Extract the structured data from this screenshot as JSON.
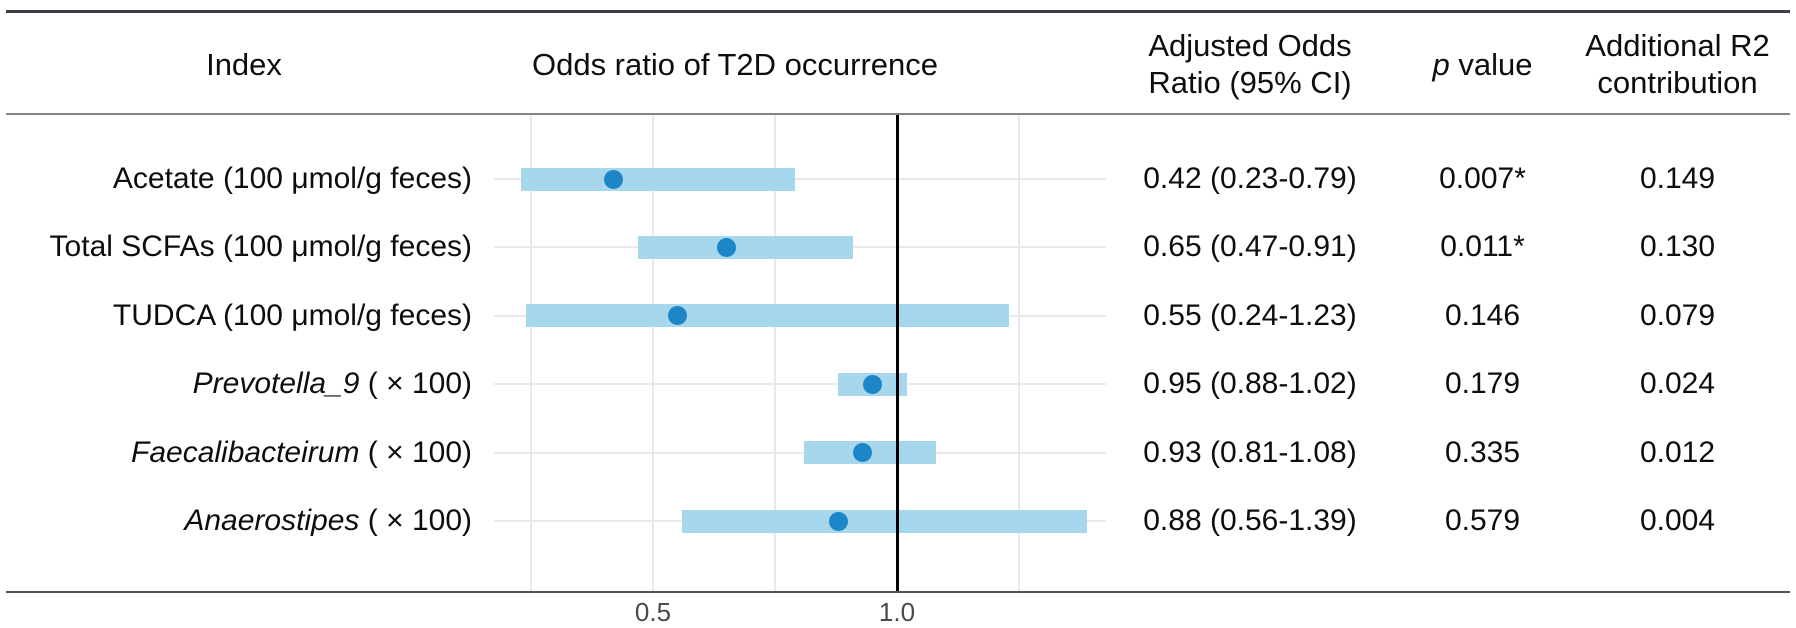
{
  "headers": {
    "index": "Index",
    "plot": "Odds ratio of T2D occurrence",
    "aor_line1": "Adjusted Odds",
    "aor_line2": "Ratio (95% CI)",
    "p_italic": "p",
    "p_rest": " value",
    "r2_line1": "Additional R2",
    "r2_line2": "contribution"
  },
  "chart_data": {
    "type": "forest",
    "title": "Odds ratio of T2D occurrence",
    "x_axis": {
      "ticks": [
        0.5,
        1.0
      ],
      "tick_labels": [
        "0.5",
        "1.0"
      ],
      "range": [
        0.16,
        1.44
      ],
      "reference_line": 1.0,
      "gridlines": [
        0.25,
        0.5,
        0.75,
        1.25
      ],
      "scale": "linear"
    },
    "rows": [
      {
        "name": "Acetate",
        "suffix": " (100 μmol/g feces)",
        "italic": false,
        "or": 0.42,
        "ci_low": 0.23,
        "ci_high": 0.79,
        "aor_text": "0.42 (0.23-0.79)",
        "p_value": "0.007*",
        "r2": "0.149"
      },
      {
        "name": "Total SCFAs",
        "suffix": " (100 μmol/g feces)",
        "italic": false,
        "or": 0.65,
        "ci_low": 0.47,
        "ci_high": 0.91,
        "aor_text": "0.65 (0.47-0.91)",
        "p_value": "0.011*",
        "r2": "0.130"
      },
      {
        "name": "TUDCA",
        "suffix": " (100 μmol/g feces)",
        "italic": false,
        "or": 0.55,
        "ci_low": 0.24,
        "ci_high": 1.23,
        "aor_text": "0.55 (0.24-1.23)",
        "p_value": "0.146",
        "r2": "0.079"
      },
      {
        "name": "Prevotella_9",
        "suffix": " ( × 100)",
        "italic": true,
        "or": 0.95,
        "ci_low": 0.88,
        "ci_high": 1.02,
        "aor_text": "0.95 (0.88-1.02)",
        "p_value": "0.179",
        "r2": "0.024"
      },
      {
        "name": "Faecalibacteirum",
        "suffix": " ( × 100)",
        "italic": true,
        "or": 0.93,
        "ci_low": 0.81,
        "ci_high": 1.08,
        "aor_text": "0.93 (0.81-1.08)",
        "p_value": "0.335",
        "r2": "0.012"
      },
      {
        "name": "Anaerostipes",
        "suffix": " ( × 100)",
        "italic": true,
        "or": 0.88,
        "ci_low": 0.56,
        "ci_high": 1.39,
        "aor_text": "0.88 (0.56-1.39)",
        "p_value": "0.579",
        "r2": "0.004"
      }
    ],
    "colors": {
      "bar": "#a6d7ec",
      "point": "#1d86c6",
      "reference_line": "#000000",
      "gridline": "#e9e9ed"
    },
    "legend": null,
    "grid": true
  }
}
